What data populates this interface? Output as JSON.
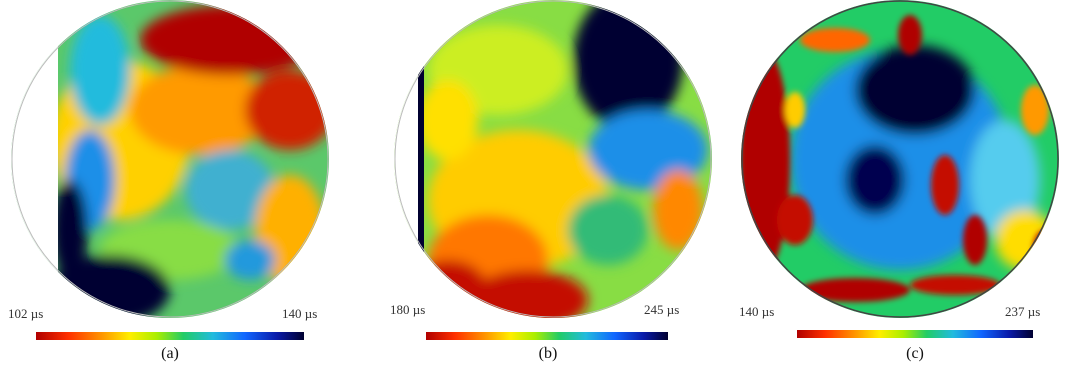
{
  "panels": [
    {
      "id": "a",
      "min_label": "102 µs",
      "max_label": "140 µs",
      "caption": "(a)",
      "min_value": 102,
      "max_value": 140,
      "unit": "µs"
    },
    {
      "id": "b",
      "min_label": "180 µs",
      "max_label": "245 µs",
      "caption": "(b)",
      "min_value": 180,
      "max_value": 245,
      "unit": "µs"
    },
    {
      "id": "c",
      "min_label": "140 µs",
      "max_label": "237 µs",
      "caption": "(c)",
      "min_value": 140,
      "max_value": 237,
      "unit": "µs"
    }
  ],
  "colors": {
    "colormap": [
      "#b00000",
      "#ff3000",
      "#ff9900",
      "#ffee00",
      "#aaee00",
      "#22cc66",
      "#22bbdd",
      "#1166ff",
      "#0a1aa8",
      "#000030"
    ]
  }
}
